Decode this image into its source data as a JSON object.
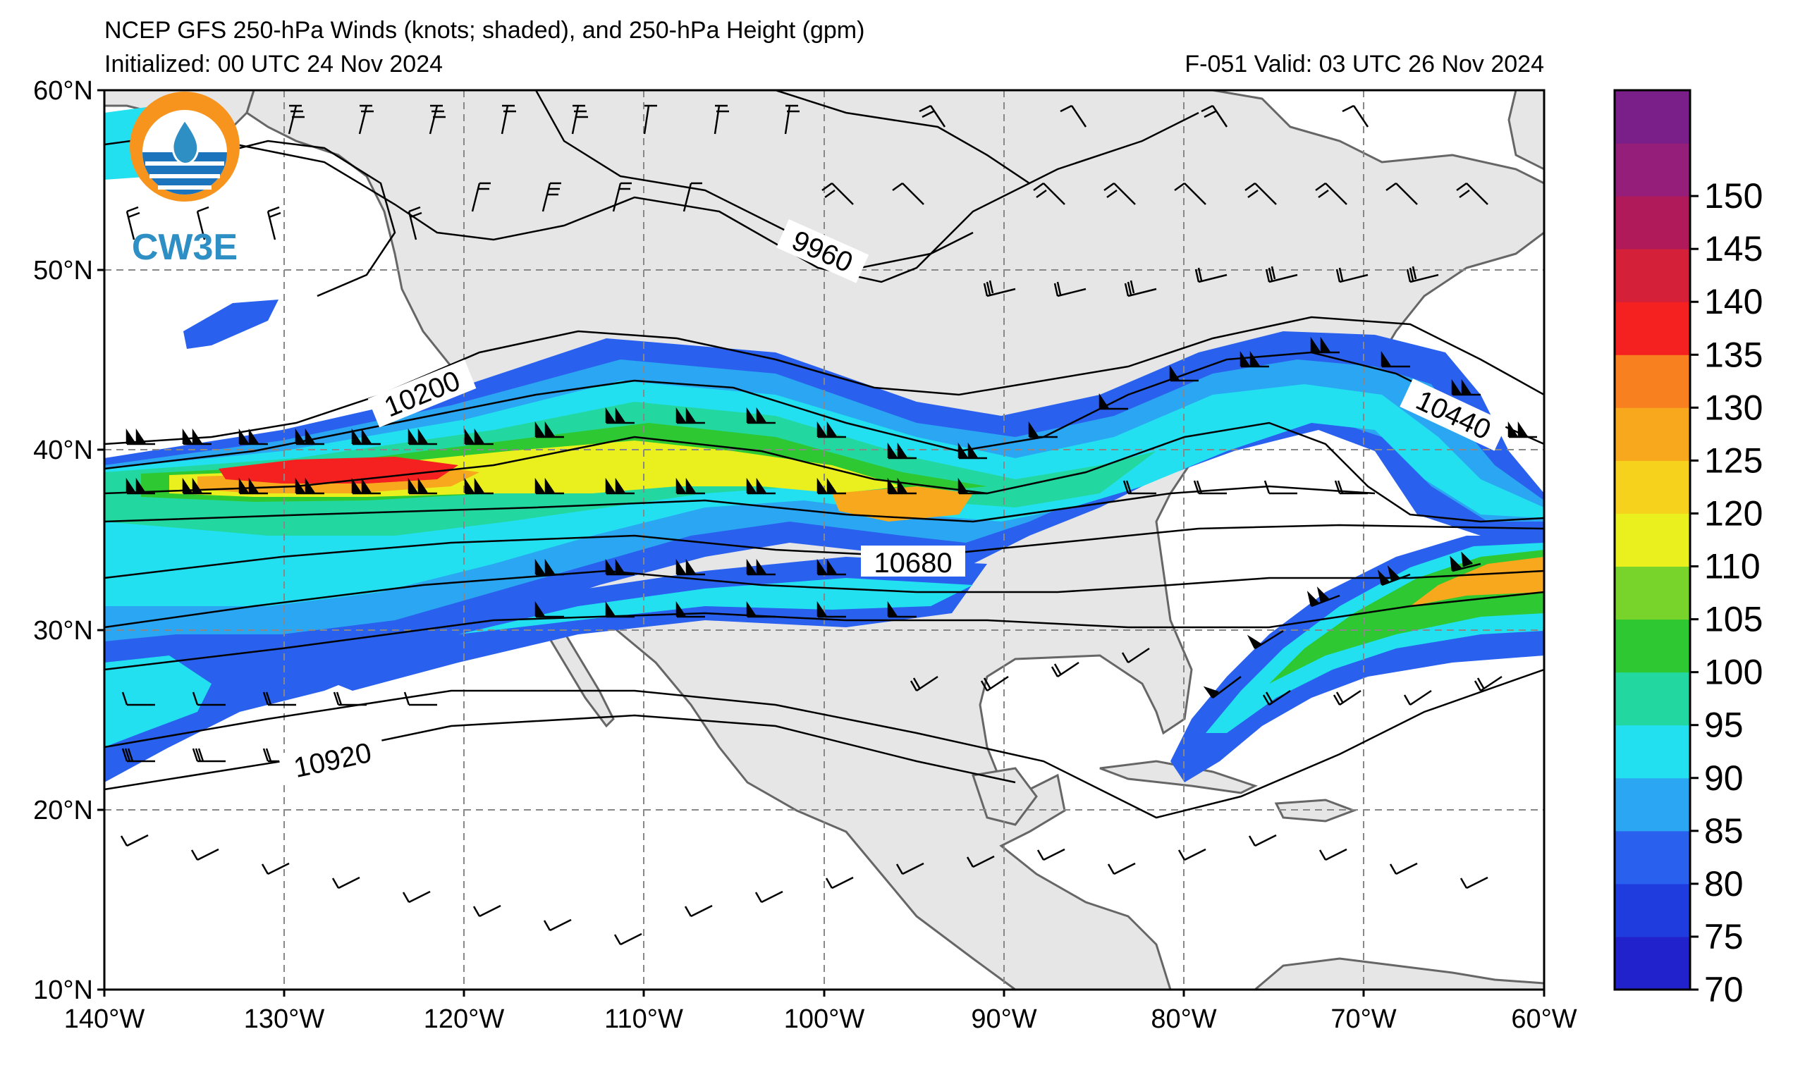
{
  "title": {
    "line1": "NCEP GFS 250-hPa Winds (knots; shaded), and 250-hPa Height (gpm)",
    "init": "Initialized: 00 UTC 24 Nov 2024",
    "valid": "F-051  Valid: 03 UTC 26 Nov 2024"
  },
  "logo": {
    "text": "CW3E",
    "colors": {
      "sun": "#f7941d",
      "water": "#1c75bc",
      "text": "#2e8fc4"
    }
  },
  "map": {
    "lon_range": [
      -140,
      -60
    ],
    "lat_range": [
      10,
      60
    ],
    "lon_ticks": [
      "140°W",
      "130°W",
      "120°W",
      "110°W",
      "100°W",
      "90°W",
      "80°W",
      "70°W",
      "60°W"
    ],
    "lat_ticks": [
      "10°N",
      "20°N",
      "30°N",
      "40°N",
      "50°N",
      "60°N"
    ],
    "land_color": "#e6e6e6",
    "grid": true
  },
  "contours": [
    {
      "label": "9960"
    },
    {
      "label": "10200"
    },
    {
      "label": "10440"
    },
    {
      "label": "10680"
    },
    {
      "label": "10920"
    }
  ],
  "colorbar": {
    "ticks": [
      "70",
      "75",
      "80",
      "85",
      "90",
      "95",
      "100",
      "105",
      "110",
      "120",
      "125",
      "130",
      "135",
      "140",
      "145",
      "150"
    ],
    "colors": [
      "#2222cc",
      "#1f3dde",
      "#2a60ee",
      "#2aa6f2",
      "#22e0f0",
      "#22d8a0",
      "#2ec832",
      "#78d42a",
      "#e9f01e",
      "#f7d21c",
      "#f8a81c",
      "#f9801e",
      "#f52020",
      "#d42038",
      "#b01a5a",
      "#941e7a",
      "#7a1f8a"
    ]
  }
}
